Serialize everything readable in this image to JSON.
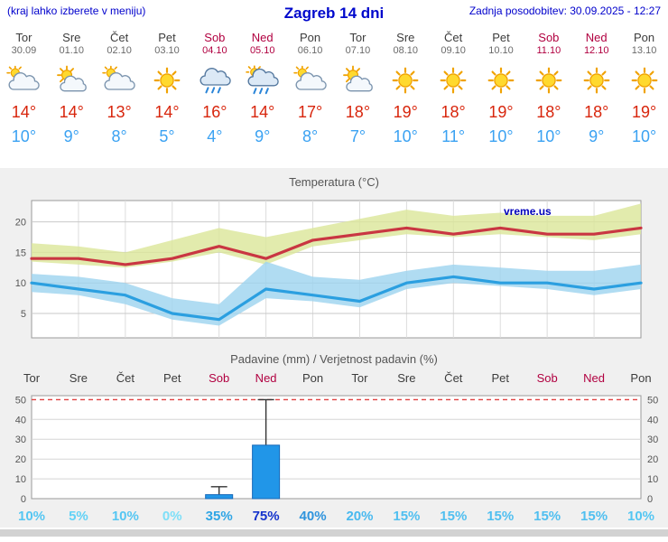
{
  "header": {
    "note": "(kraj lahko izberete v meniju)",
    "title": "Zagreb 14 dni",
    "updated": "Zadnja posodobitev: 30.09.2025 - 12:27"
  },
  "watermark": "vreme.us",
  "colors": {
    "header_blue": "#0000cc",
    "weekend_red": "#b10040",
    "tmax_red": "#d8250c",
    "tmin_blue": "#3ba2f2",
    "bar_blue": "#2196e8"
  },
  "forecast": {
    "days": [
      {
        "name": "Tor",
        "date": "30.09",
        "weekend": false,
        "icon": "sun-cloud",
        "tmax": "14°",
        "tmin": "10°"
      },
      {
        "name": "Sre",
        "date": "01.10",
        "weekend": false,
        "icon": "partly-sunny",
        "tmax": "14°",
        "tmin": "9°"
      },
      {
        "name": "Čet",
        "date": "02.10",
        "weekend": false,
        "icon": "sun-cloud",
        "tmax": "13°",
        "tmin": "8°"
      },
      {
        "name": "Pet",
        "date": "03.10",
        "weekend": false,
        "icon": "sunny",
        "tmax": "14°",
        "tmin": "5°"
      },
      {
        "name": "Sob",
        "date": "04.10",
        "weekend": true,
        "icon": "rain",
        "tmax": "16°",
        "tmin": "4°"
      },
      {
        "name": "Ned",
        "date": "05.10",
        "weekend": true,
        "icon": "rain-sun",
        "tmax": "14°",
        "tmin": "9°"
      },
      {
        "name": "Pon",
        "date": "06.10",
        "weekend": false,
        "icon": "sun-cloud",
        "tmax": "17°",
        "tmin": "8°"
      },
      {
        "name": "Tor",
        "date": "07.10",
        "weekend": false,
        "icon": "partly-sunny",
        "tmax": "18°",
        "tmin": "7°"
      },
      {
        "name": "Sre",
        "date": "08.10",
        "weekend": false,
        "icon": "sunny",
        "tmax": "19°",
        "tmin": "10°"
      },
      {
        "name": "Čet",
        "date": "09.10",
        "weekend": false,
        "icon": "sunny",
        "tmax": "18°",
        "tmin": "11°"
      },
      {
        "name": "Pet",
        "date": "10.10",
        "weekend": false,
        "icon": "sunny",
        "tmax": "19°",
        "tmin": "10°"
      },
      {
        "name": "Sob",
        "date": "11.10",
        "weekend": true,
        "icon": "sunny",
        "tmax": "18°",
        "tmin": "10°"
      },
      {
        "name": "Ned",
        "date": "12.10",
        "weekend": true,
        "icon": "sunny",
        "tmax": "18°",
        "tmin": "9°"
      },
      {
        "name": "Pon",
        "date": "13.10",
        "weekend": false,
        "icon": "sunny",
        "tmax": "19°",
        "tmin": "10°"
      }
    ]
  },
  "chart_data": [
    {
      "type": "line",
      "title": "Temperatura (°C)",
      "x": [
        "Tor",
        "Sre",
        "Čet",
        "Pet",
        "Sob",
        "Ned",
        "Pon",
        "Tor",
        "Sre",
        "Čet",
        "Pet",
        "Sob",
        "Ned",
        "Pon"
      ],
      "ylim": [
        1,
        23.5
      ],
      "yticks": [
        5,
        10,
        15,
        20
      ],
      "grid": true,
      "series": [
        {
          "name": "max-temp",
          "color": "#c93642",
          "values": [
            14,
            14,
            13,
            14,
            16,
            14,
            17,
            18,
            19,
            18,
            19,
            18,
            18,
            19
          ]
        },
        {
          "name": "min-temp",
          "color": "#2b9fe0",
          "values": [
            10,
            9,
            8,
            5,
            4,
            9,
            8,
            7,
            10,
            11,
            10,
            10,
            9,
            10
          ]
        }
      ],
      "bands": [
        {
          "name": "max-temp-range",
          "color": "#dce79b",
          "upper": [
            16.5,
            16,
            15,
            17,
            19,
            17.5,
            19,
            20.5,
            22,
            21,
            21.5,
            21,
            21,
            23
          ],
          "lower": [
            13.5,
            13,
            12.5,
            13.5,
            15,
            13,
            16,
            17,
            18,
            17.5,
            18,
            17.5,
            17,
            18
          ]
        },
        {
          "name": "min-temp-range",
          "color": "#9fd4ef",
          "upper": [
            11.5,
            11,
            10,
            7.5,
            6.5,
            13.5,
            11,
            10.5,
            12,
            13,
            12.5,
            12,
            12,
            13
          ],
          "lower": [
            8.5,
            8,
            6.5,
            4,
            3,
            7.5,
            7,
            6,
            9,
            10,
            9.5,
            9,
            8,
            9
          ]
        }
      ]
    },
    {
      "type": "bar",
      "title": "Padavine (mm) / Verjetnost padavin (%)",
      "categories": [
        "Tor",
        "Sre",
        "Čet",
        "Pet",
        "Sob",
        "Ned",
        "Pon",
        "Tor",
        "Sre",
        "Čet",
        "Pet",
        "Sob",
        "Ned",
        "Pon"
      ],
      "weekend": [
        false,
        false,
        false,
        false,
        true,
        true,
        false,
        false,
        false,
        false,
        false,
        true,
        true,
        false
      ],
      "precip_mm": [
        0,
        0,
        0,
        0,
        2,
        27,
        0,
        0,
        0,
        0,
        0,
        0,
        0,
        0
      ],
      "precip_max_mm": [
        0,
        0,
        0,
        0,
        6,
        50,
        0,
        0,
        0,
        0,
        0,
        0,
        0,
        0
      ],
      "probability": [
        "10%",
        "5%",
        "10%",
        "0%",
        "35%",
        "75%",
        "40%",
        "20%",
        "15%",
        "15%",
        "15%",
        "15%",
        "15%",
        "10%"
      ],
      "probability_colors": [
        "#55c6f2",
        "#63d2f6",
        "#55c6f2",
        "#7ddff8",
        "#2fa5e5",
        "#1433cc",
        "#2f94dd",
        "#49b9ef",
        "#50bff0",
        "#50bff0",
        "#50bff0",
        "#50bff0",
        "#50bff0",
        "#55c6f2"
      ],
      "ylim": [
        0,
        52
      ],
      "yticks": [
        0,
        10,
        20,
        30,
        40,
        50
      ],
      "bar_color": "#2196e8",
      "bar_border": "#1668b8",
      "limit_line_color": "#e04040"
    }
  ]
}
